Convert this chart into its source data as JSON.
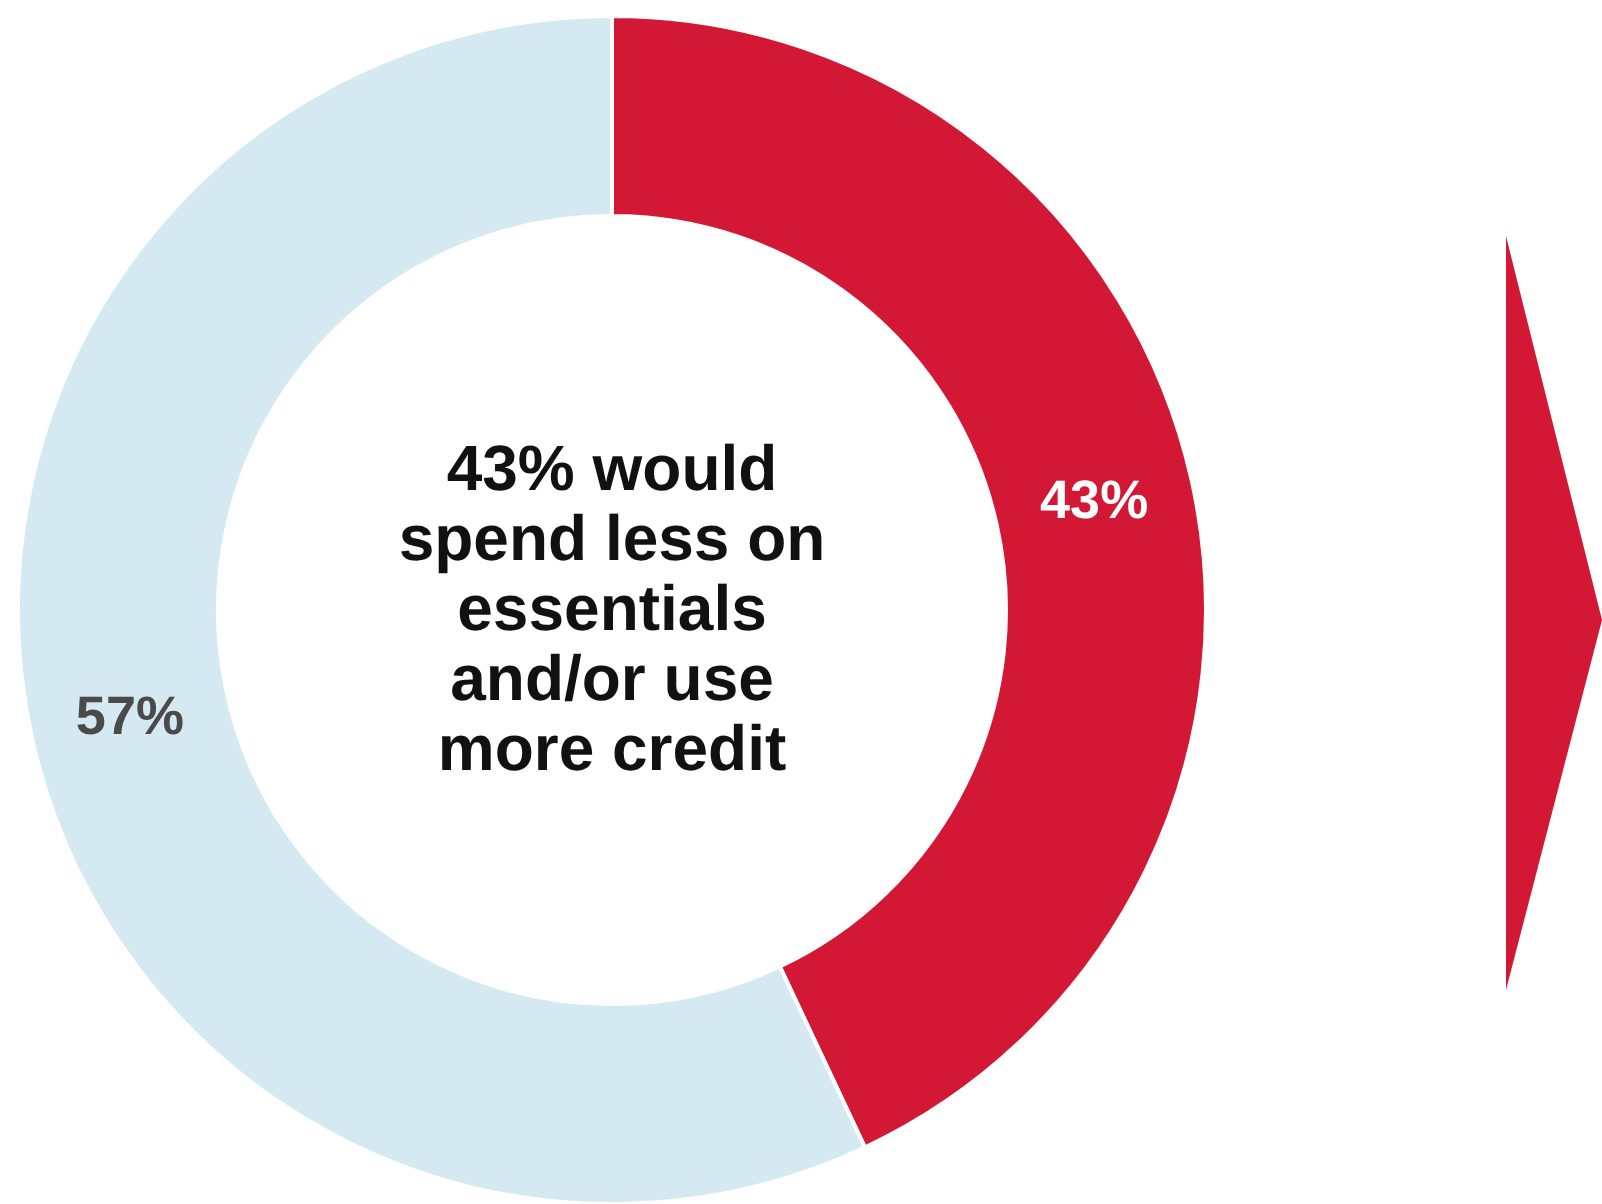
{
  "chart_data": {
    "type": "donut",
    "categories": [
      null,
      null
    ],
    "values": [
      43,
      57
    ],
    "colors": [
      "#d31836",
      "#d4e9f2"
    ],
    "value_labels": [
      "43%",
      "57%"
    ],
    "annotations": [
      "43% would spend less on essentials and/or use more credit"
    ]
  }
}
